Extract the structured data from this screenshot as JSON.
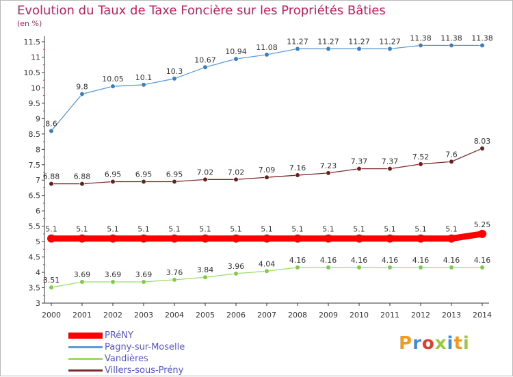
{
  "title": "Evolution du Taux de Taxe Foncière sur les Propriétés Bâties",
  "unit": "(en %)",
  "brand": {
    "text": "Proxiti",
    "colors": [
      "#f39a1e",
      "#3c8fd6",
      "#e23c2c",
      "#9ac93c",
      "#3c8fd6",
      "#f39a1e",
      "#9ac93c"
    ]
  },
  "chart_data": {
    "type": "line",
    "title": "Evolution du Taux de Taxe Foncière sur les Propriétés Bâties",
    "ylabel": "(en %)",
    "xlabel": "",
    "ylim": [
      3,
      11.5
    ],
    "yticks": [
      "3",
      "3.5",
      "4",
      "4.5",
      "5",
      "5.5",
      "6",
      "6.5",
      "7",
      "7.5",
      "8",
      "8.5",
      "9",
      "9.5",
      "10",
      "10.5",
      "11",
      "11.5"
    ],
    "categories": [
      "2000",
      "2001",
      "2002",
      "2003",
      "2004",
      "2005",
      "2006",
      "2007",
      "2008",
      "2009",
      "2010",
      "2011",
      "2012",
      "2013",
      "2014"
    ],
    "series": [
      {
        "name": "Pagny-sur-Moselle",
        "color": "#5b9bd5",
        "marker": "#3a7fc2",
        "values": [
          8.6,
          9.8,
          10.05,
          10.1,
          10.3,
          10.67,
          10.94,
          11.08,
          11.27,
          11.27,
          11.27,
          11.27,
          11.38,
          11.38,
          11.38
        ]
      },
      {
        "name": "Villers-sous-Prény",
        "color": "#7a2a2a",
        "marker": "#6a1f1f",
        "values": [
          6.88,
          6.88,
          6.95,
          6.95,
          6.95,
          7.02,
          7.02,
          7.09,
          7.16,
          7.23,
          7.37,
          7.37,
          7.52,
          7.6,
          8.03
        ]
      },
      {
        "name": "PRéNY",
        "color": "#ff0000",
        "marker": "#ff0000",
        "thick": true,
        "values": [
          5.1,
          5.1,
          5.1,
          5.1,
          5.1,
          5.1,
          5.1,
          5.1,
          5.1,
          5.1,
          5.1,
          5.1,
          5.1,
          5.1,
          5.25
        ]
      },
      {
        "name": "Vandières",
        "color": "#99dd66",
        "marker": "#7fcc44",
        "values": [
          3.51,
          3.69,
          3.69,
          3.69,
          3.76,
          3.84,
          3.96,
          4.04,
          4.16,
          4.16,
          4.16,
          4.16,
          4.16,
          4.16,
          4.16
        ]
      }
    ],
    "legend": [
      {
        "name": "PRéNY",
        "color": "#ff0000",
        "thick": true
      },
      {
        "name": "Pagny-sur-Moselle",
        "color": "#5b9bd5"
      },
      {
        "name": "Vandières",
        "color": "#99dd66"
      },
      {
        "name": "Villers-sous-Prény",
        "color": "#7a2a2a"
      }
    ],
    "legend_position": "bottom-left",
    "grid": false
  }
}
